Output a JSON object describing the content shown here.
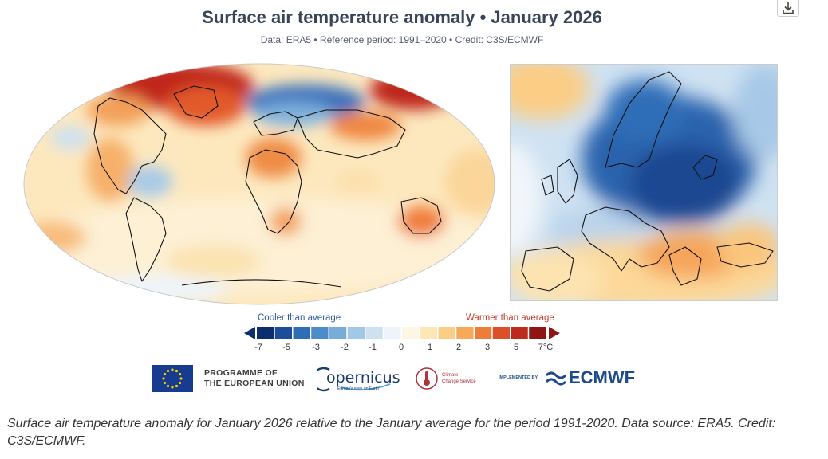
{
  "header": {
    "title": "Surface air temperature anomaly • January 2026",
    "subtitle": "Data: ERA5 • Reference period: 1991–2020 • Credit: C3S/ECMWF",
    "download_icon": "download-icon"
  },
  "maps": {
    "world": "global-anomaly-map",
    "europe": "europe-anomaly-map"
  },
  "legend": {
    "cooler_label": "Cooler than average",
    "warmer_label": "Warmer than average",
    "ticks": [
      "-7",
      "-5",
      "-3",
      "-2",
      "-1",
      "0",
      "1",
      "2",
      "3",
      "5",
      "7°C"
    ],
    "colors": [
      "#0c2d6e",
      "#1c4d99",
      "#2f6db7",
      "#4d8cc9",
      "#78acd9",
      "#a3c8e6",
      "#cde1f1",
      "#eef4f9",
      "#fdf6e2",
      "#fde7b4",
      "#fccd84",
      "#f7a95a",
      "#ee7d3a",
      "#dc4f28",
      "#bd2a1e",
      "#8f1512"
    ]
  },
  "logos": {
    "eu_line1": "PROGRAMME OF",
    "eu_line2": "THE EUROPEAN UNION",
    "copernicus": "opernicus",
    "copernicus_tag": "Europe's eyes on Earth",
    "c3s_line1": "Climate",
    "c3s_line2": "Change Service",
    "implemented_by": "IMPLEMENTED BY",
    "ecmwf": "ECMWF"
  },
  "caption": "Surface air temperature anomaly for January 2026 relative to the January average for the period 1991-2020. Data source: ERA5. Credit: C3S/ECMWF."
}
